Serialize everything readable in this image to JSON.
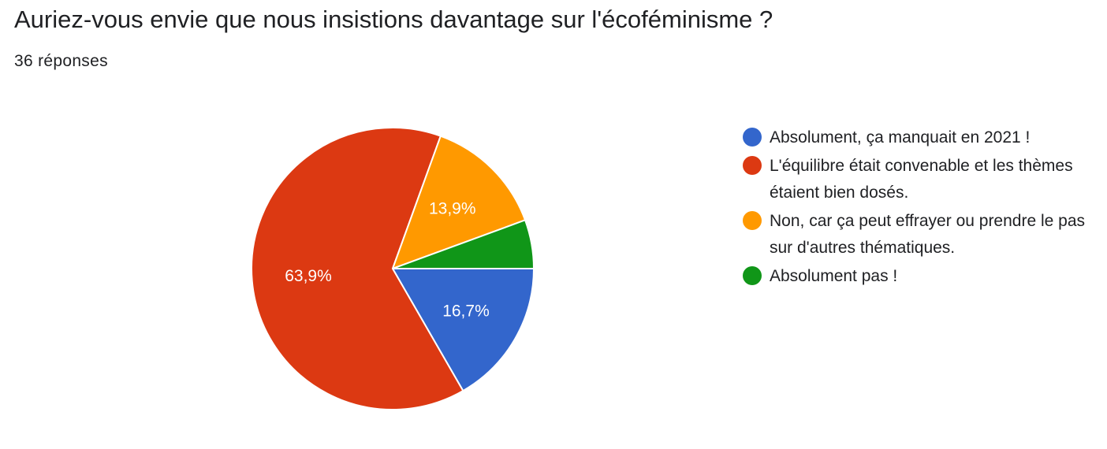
{
  "question": "Auriez-vous envie que nous insistions davantage sur l'écoféminisme ?",
  "response_count": "36 réponses",
  "chart_data": {
    "type": "pie",
    "slices": [
      {
        "label": "Absolument, ça manquait en 2021 !",
        "value": 16.7,
        "display": "16,7%",
        "color": "#3366cc"
      },
      {
        "label": "L'équilibre était convenable et les thèmes étaient bien dosés.",
        "value": 63.9,
        "display": "63,9%",
        "color": "#dc3912"
      },
      {
        "label": "Non, car ça peut effrayer ou prendre le pas sur d'autres thématiques.",
        "value": 13.9,
        "display": "13,9%",
        "color": "#ff9900"
      },
      {
        "label": "Absolument pas !",
        "value": 5.6,
        "display": "",
        "color": "#109618"
      }
    ],
    "legend_position": "right"
  }
}
